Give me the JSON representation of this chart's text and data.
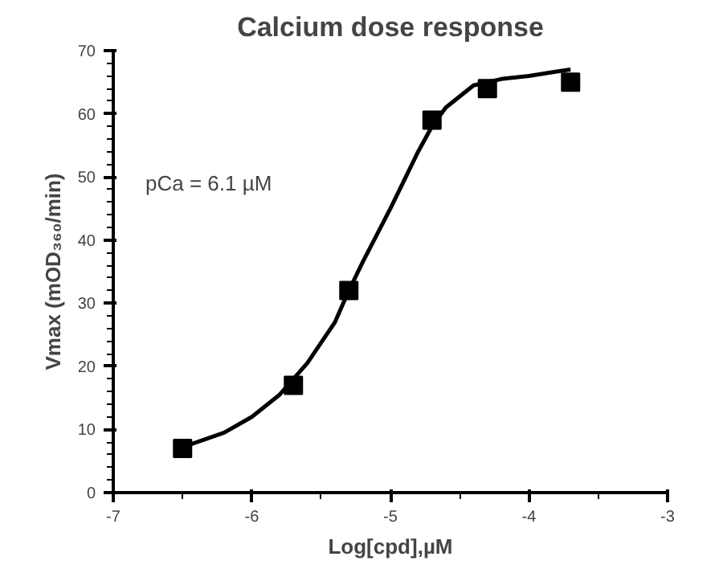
{
  "chart_data": {
    "type": "scatter",
    "title": "Calcium dose response",
    "xlabel": "Log[cpd],µM",
    "ylabel": "Vmax (mOD₃₆₀/min)",
    "annotations": [
      "pCa = 6.1 µM"
    ],
    "xlim": [
      -7,
      -3
    ],
    "xticks": [
      -7,
      -6,
      -5,
      -4,
      -3
    ],
    "ylim": [
      0,
      70
    ],
    "yticks": [
      0,
      10,
      20,
      30,
      40,
      50,
      60,
      70
    ],
    "grid": false,
    "marker": "square",
    "series": [
      {
        "color": "#000000",
        "x": [
          -6.5,
          -5.7,
          -5.3,
          -4.7,
          -4.3,
          -3.7
        ],
        "values": [
          7,
          17,
          32,
          59,
          64,
          65
        ]
      },
      {
        "type": "line",
        "color": "#000000",
        "line_style": "solid",
        "marker": "none",
        "x": [
          -6.5,
          -6.2,
          -6.0,
          -5.8,
          -5.6,
          -5.4,
          -5.3,
          -5.2,
          -5.0,
          -4.8,
          -4.7,
          -4.6,
          -4.4,
          -4.2,
          -4.0,
          -3.8,
          -3.7
        ],
        "values": [
          7.2,
          9.5,
          12,
          15.5,
          20.5,
          27,
          32,
          36.5,
          45,
          54,
          58,
          61,
          64.5,
          65.5,
          66,
          66.7,
          67
        ]
      }
    ]
  }
}
